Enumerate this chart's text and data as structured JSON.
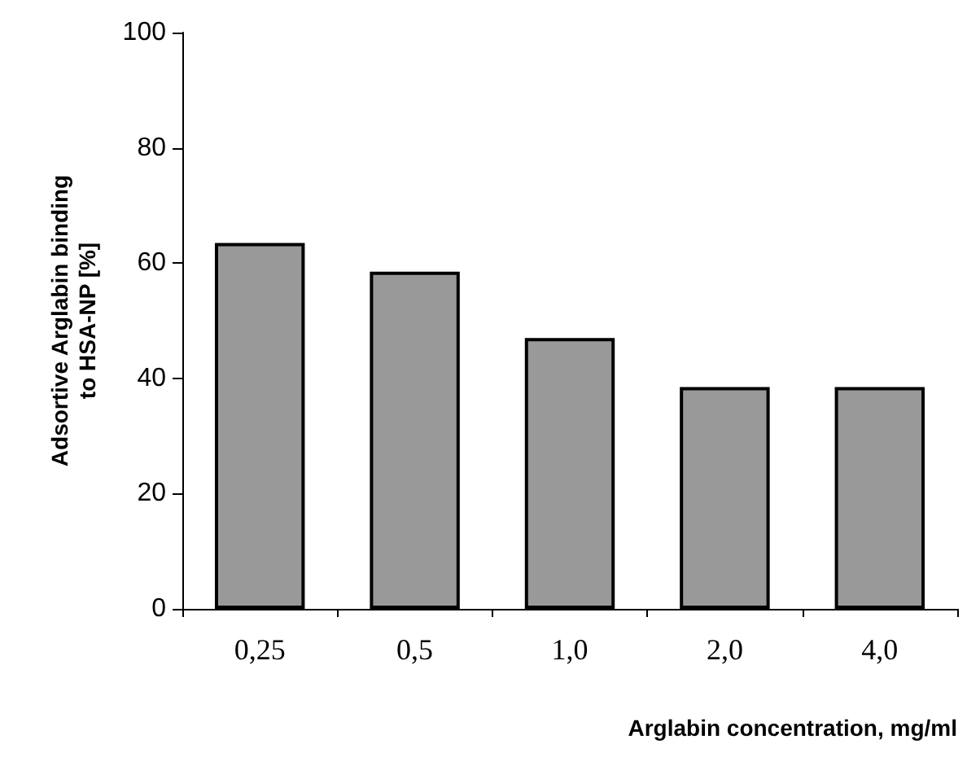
{
  "chart_data": {
    "type": "bar",
    "xlabel": "Arglabin concentration, mg/ml",
    "ylabel": "Adsortive Arglabin binding to HSA-NP [%]",
    "categories": [
      "0,25",
      "0,5",
      "1,0",
      "2,0",
      "4,0"
    ],
    "values": [
      63.5,
      58.5,
      47,
      38.5,
      38.5
    ],
    "color": "#999999",
    "ylim": [
      0,
      100
    ],
    "yticks": [
      0,
      20,
      40,
      60,
      80,
      100
    ],
    "grid": false
  }
}
